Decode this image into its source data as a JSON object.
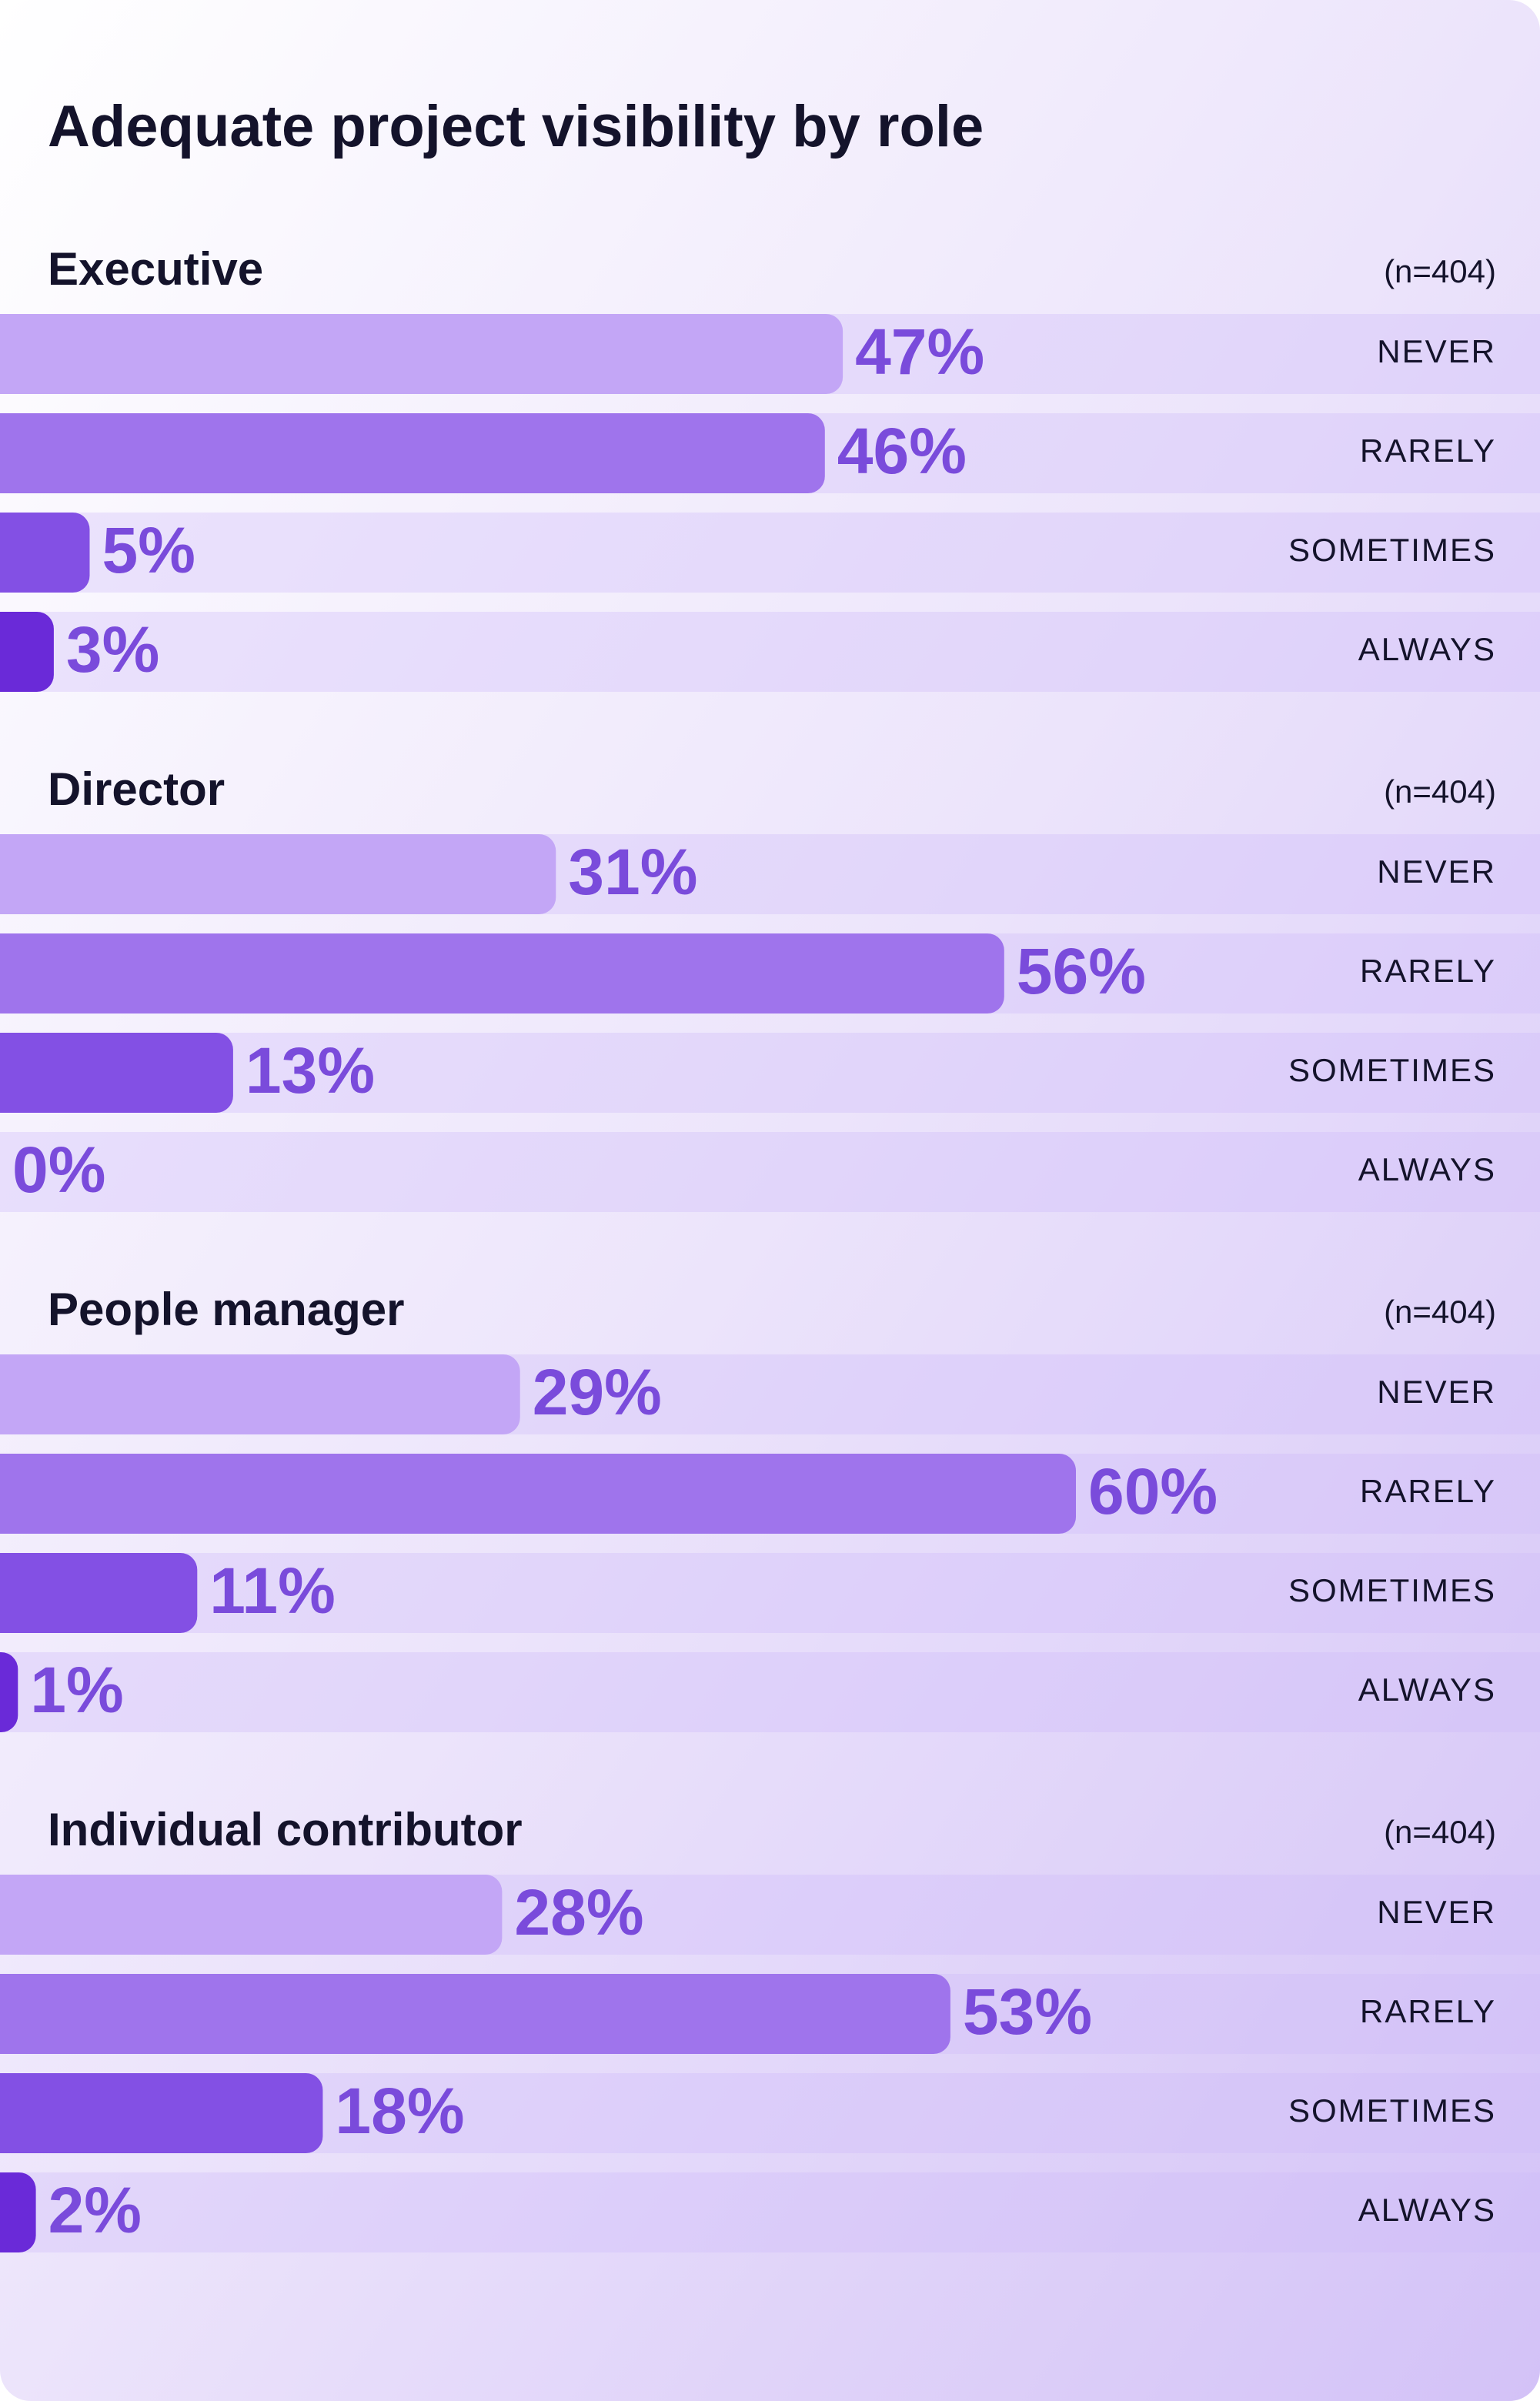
{
  "title": "Adequate project visibility by role",
  "chart_data": [
    {
      "type": "bar",
      "title": "Executive",
      "note": "(n=404)",
      "categories": [
        "NEVER",
        "RARELY",
        "SOMETIMES",
        "ALWAYS"
      ],
      "values": [
        47,
        46,
        5,
        3
      ],
      "value_labels": [
        "47%",
        "46%",
        "5%",
        "3%"
      ],
      "colors": [
        "#c3a6f6",
        "#9f74ec",
        "#8350e4",
        "#6a2ad8"
      ]
    },
    {
      "type": "bar",
      "title": "Director",
      "note": "(n=404)",
      "categories": [
        "NEVER",
        "RARELY",
        "SOMETIMES",
        "ALWAYS"
      ],
      "values": [
        31,
        56,
        13,
        0
      ],
      "value_labels": [
        "31%",
        "56%",
        "13%",
        "0%"
      ],
      "colors": [
        "#c3a6f6",
        "#9f74ec",
        "#8350e4",
        "#6a2ad8"
      ]
    },
    {
      "type": "bar",
      "title": "People manager",
      "note": "(n=404)",
      "categories": [
        "NEVER",
        "RARELY",
        "SOMETIMES",
        "ALWAYS"
      ],
      "values": [
        29,
        60,
        11,
        1
      ],
      "value_labels": [
        "29%",
        "60%",
        "11%",
        "1%"
      ],
      "colors": [
        "#c3a6f6",
        "#9f74ec",
        "#8350e4",
        "#6a2ad8"
      ]
    },
    {
      "type": "bar",
      "title": "Individual contributor",
      "note": "(n=404)",
      "categories": [
        "NEVER",
        "RARELY",
        "SOMETIMES",
        "ALWAYS"
      ],
      "values": [
        28,
        53,
        18,
        2
      ],
      "value_labels": [
        "28%",
        "53%",
        "18%",
        "2%"
      ],
      "colors": [
        "#c3a6f6",
        "#9f74ec",
        "#8350e4",
        "#6a2ad8"
      ]
    }
  ]
}
